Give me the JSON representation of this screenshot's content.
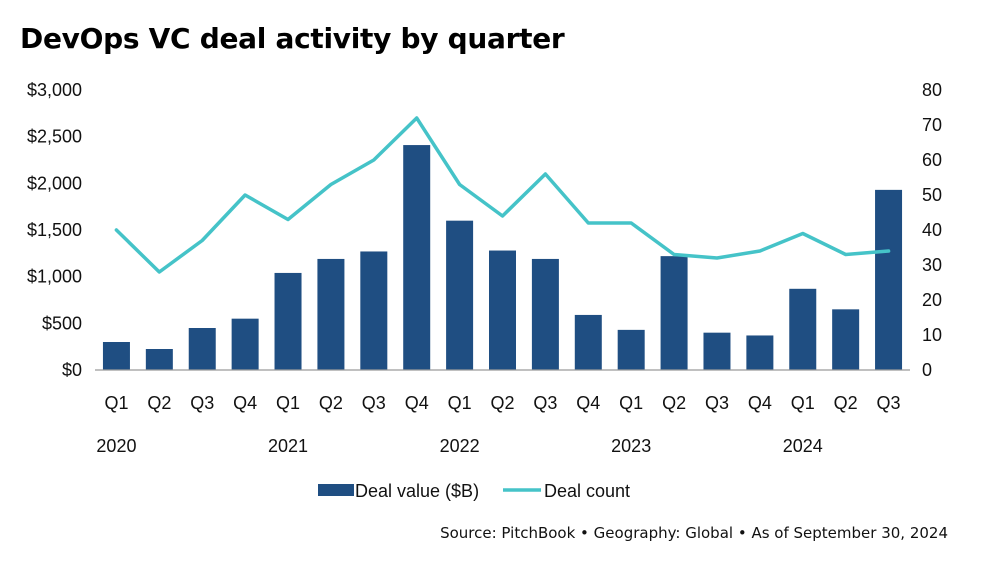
{
  "title": "DevOps VC deal activity by quarter",
  "source": "Source: PitchBook  •  Geography: Global  •  As of September 30, 2024",
  "colors": {
    "bar": "#1f4e82",
    "line": "#45c3c8",
    "axis": "#9a9a9a"
  },
  "chart_data": {
    "type": "bar",
    "categories": [
      "Q1",
      "Q2",
      "Q3",
      "Q4",
      "Q1",
      "Q2",
      "Q3",
      "Q4",
      "Q1",
      "Q2",
      "Q3",
      "Q4",
      "Q1",
      "Q2",
      "Q3",
      "Q4",
      "Q1",
      "Q2",
      "Q3"
    ],
    "years": [
      "2020",
      "2021",
      "2022",
      "2023",
      "2024"
    ],
    "series": [
      {
        "name": "Deal value ($B)",
        "type": "bar",
        "axis": "left",
        "values": [
          300,
          225,
          450,
          550,
          1040,
          1190,
          1270,
          2410,
          1600,
          1280,
          1190,
          590,
          430,
          1220,
          400,
          370,
          870,
          650,
          1930
        ]
      },
      {
        "name": "Deal count",
        "type": "line",
        "axis": "right",
        "values": [
          40,
          28,
          37,
          50,
          43,
          53,
          60,
          72,
          53,
          44,
          56,
          42,
          42,
          33,
          32,
          34,
          39,
          33,
          34
        ]
      }
    ],
    "y_left": {
      "ticks": [
        "$0",
        "$500",
        "$1,000",
        "$1,500",
        "$2,000",
        "$2,500",
        "$3,000"
      ],
      "ylim": [
        0,
        3000
      ]
    },
    "y_right": {
      "ticks": [
        "0",
        "10",
        "20",
        "30",
        "40",
        "50",
        "60",
        "70",
        "80"
      ],
      "ylim": [
        0,
        80
      ]
    },
    "legend_position": "bottom",
    "grid": false
  }
}
